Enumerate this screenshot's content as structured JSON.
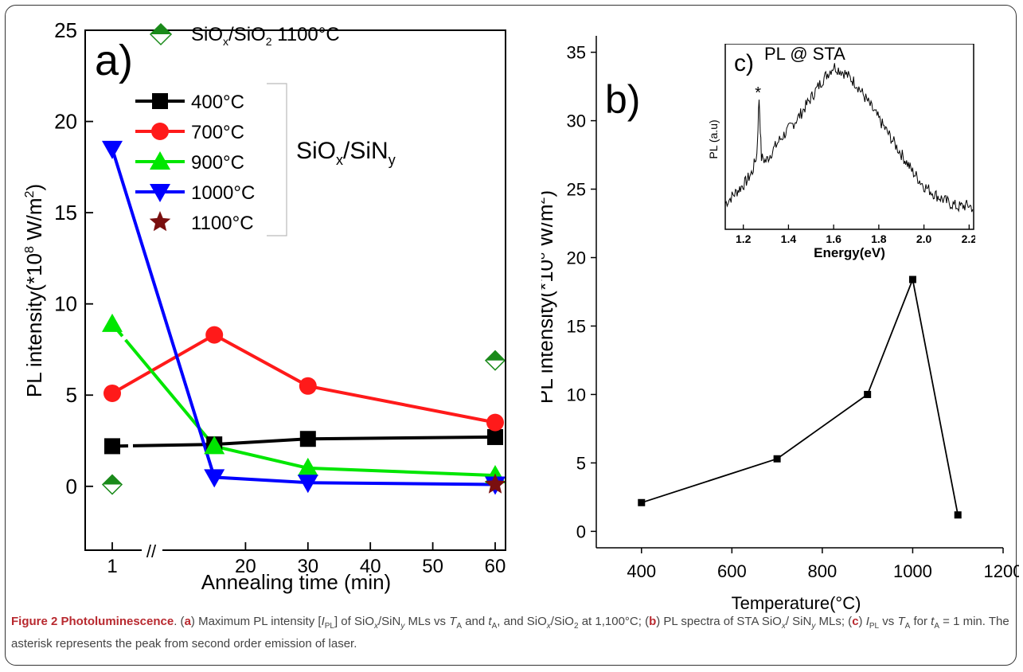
{
  "caption": {
    "label": "Figure 2 Photoluminescence",
    "text": ". (a) Maximum PL intensity [I",
    "full": "(a) Maximum PL intensity [IPL] of SiOx/SiNy MLs vs TA and tA, and SiOx/SiO2 at 1,100°C; (b) PL spectra of STA SiOx/SiNy MLs; (c) IPL vs TA for tA = 1 min. The asterisk represents the peak from second order emission of laser."
  },
  "chart_data": [
    {
      "panel": "a)",
      "type": "line",
      "xlabel": "Annealing time (min)",
      "ylabel_main": "PL intensity(*10",
      "ylabel_sup": "8",
      "ylabel_unit": " W/m",
      "ylabel_sup2": "2",
      "ylabel_end": ")",
      "x_ticks": [
        "1",
        "20",
        "30",
        "40",
        "50",
        "60"
      ],
      "y_ticks": [
        "0",
        "5",
        "10",
        "15",
        "20",
        "25"
      ],
      "ylim": [
        -3.5,
        25
      ],
      "axis_break": "//",
      "label_sioxsiny": "SiOx/SiNy",
      "label_siox": "SiO",
      "label_siox_sub": "x",
      "label_sin": "/SiN",
      "label_sin_sub": "y",
      "legend_ref_a": "SiO",
      "legend_ref_a_sub1": "x",
      "legend_ref_b": "/SiO",
      "legend_ref_b_sub2": "2",
      "legend_ref_c": " 1100°C",
      "series": [
        {
          "name": "400°C",
          "color": "#000000",
          "marker": "square",
          "x": [
            1,
            15,
            30,
            60
          ],
          "values": [
            2.2,
            2.3,
            2.6,
            2.7
          ]
        },
        {
          "name": "700°C",
          "color": "#ff1a1a",
          "marker": "circle",
          "x": [
            1,
            15,
            30,
            60
          ],
          "values": [
            5.1,
            8.3,
            5.5,
            3.5
          ]
        },
        {
          "name": "900°C",
          "color": "#00e600",
          "marker": "triangle-up",
          "x": [
            1,
            15,
            30,
            60
          ],
          "values": [
            8.9,
            2.2,
            1.0,
            0.6
          ]
        },
        {
          "name": "1000°C",
          "color": "#0000ff",
          "marker": "triangle-down",
          "x": [
            1,
            15,
            30,
            60
          ],
          "values": [
            18.5,
            0.5,
            0.2,
            0.1
          ]
        },
        {
          "name": "1100°C",
          "color": "#7a0f0f",
          "marker": "star",
          "x": [
            60
          ],
          "values": [
            0.1
          ]
        },
        {
          "name": "SiOx/SiO2 1100°C",
          "color": "#1a8a1a",
          "marker": "diamond-half",
          "x": [
            1,
            60
          ],
          "values": [
            0.1,
            6.9
          ]
        }
      ]
    },
    {
      "panel": "b)",
      "type": "line",
      "xlabel": "Temperature(°C)",
      "ylabel_main": "PL intensity(*10",
      "ylabel_sup": "8",
      "ylabel_unit": " W/m",
      "ylabel_sup2": "2",
      "ylabel_end": ")",
      "x_ticks": [
        "400",
        "600",
        "800",
        "1000",
        "1200"
      ],
      "y_ticks": [
        "0",
        "5",
        "10",
        "15",
        "20",
        "25",
        "30",
        "35"
      ],
      "xlim": [
        300,
        1200
      ],
      "ylim": [
        -1.2,
        36.2
      ],
      "series": [
        {
          "color": "#000000",
          "marker": "square",
          "x": [
            400,
            700,
            900,
            1000,
            1100
          ],
          "values": [
            2.1,
            5.3,
            10.0,
            18.4,
            1.2
          ]
        }
      ]
    },
    {
      "panel": "c)",
      "type": "line",
      "title": "PL @ STA",
      "xlabel": "Energy(eV)",
      "ylabel": "PL (a.u)",
      "annotation": "*",
      "x_ticks": [
        "1.2",
        "1.4",
        "1.6",
        "1.8",
        "2.0",
        "2.2"
      ],
      "xlim": [
        1.12,
        2.22
      ],
      "series": [
        {
          "color": "#000000",
          "x": [
            1.12,
            1.15,
            1.18,
            1.21,
            1.24,
            1.26,
            1.27,
            1.28,
            1.3,
            1.33,
            1.36,
            1.4,
            1.45,
            1.5,
            1.55,
            1.6,
            1.65,
            1.7,
            1.75,
            1.8,
            1.85,
            1.9,
            1.95,
            2.0,
            2.05,
            2.1,
            2.15,
            2.2,
            2.22
          ],
          "values": [
            0.12,
            0.16,
            0.2,
            0.24,
            0.3,
            0.4,
            0.72,
            0.38,
            0.36,
            0.42,
            0.48,
            0.54,
            0.62,
            0.72,
            0.82,
            0.9,
            0.86,
            0.8,
            0.7,
            0.6,
            0.5,
            0.4,
            0.3,
            0.22,
            0.17,
            0.13,
            0.1,
            0.11,
            0.09
          ]
        }
      ]
    }
  ]
}
